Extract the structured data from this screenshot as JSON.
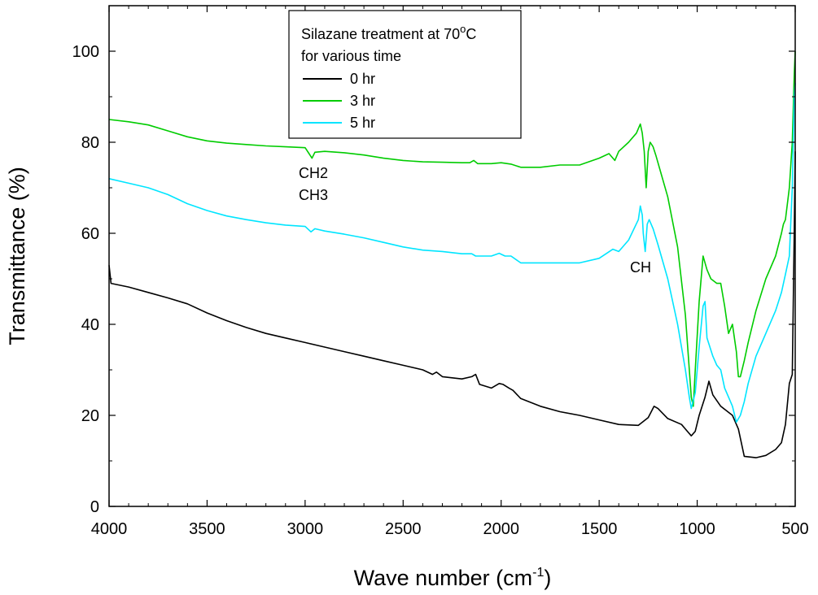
{
  "chart_data": {
    "type": "line",
    "xlabel": "Wave number (cm",
    "xlabel_sup": "-1",
    "xlabel_close": ")",
    "ylabel": "Transmittance (%)",
    "xlim": [
      4000,
      500
    ],
    "ylim": [
      0,
      110
    ],
    "x_ticks": [
      4000,
      3500,
      3000,
      2500,
      2000,
      1500,
      1000,
      500
    ],
    "y_ticks": [
      0,
      20,
      40,
      60,
      80,
      100
    ],
    "grid": false,
    "legend": {
      "placement": "top-center",
      "title_line1": "Silazane treatment at 70",
      "title_deg": "o",
      "title_unit": "C",
      "title_line2": "for various time"
    },
    "annotations": {
      "ch2": "CH2",
      "ch3": "CH3",
      "ch": "CH"
    },
    "series": [
      {
        "name": "0 hr",
        "color": "#000000",
        "points": [
          [
            4000,
            53
          ],
          [
            3990,
            49
          ],
          [
            3900,
            48.2
          ],
          [
            3800,
            47
          ],
          [
            3700,
            45.8
          ],
          [
            3600,
            44.5
          ],
          [
            3500,
            42.5
          ],
          [
            3400,
            40.8
          ],
          [
            3300,
            39.3
          ],
          [
            3200,
            38
          ],
          [
            3100,
            37
          ],
          [
            3000,
            36
          ],
          [
            2900,
            35
          ],
          [
            2800,
            34
          ],
          [
            2700,
            33
          ],
          [
            2600,
            32
          ],
          [
            2500,
            31
          ],
          [
            2400,
            30
          ],
          [
            2350,
            29
          ],
          [
            2330,
            29.5
          ],
          [
            2300,
            28.5
          ],
          [
            2200,
            28
          ],
          [
            2150,
            28.5
          ],
          [
            2130,
            29
          ],
          [
            2110,
            26.8
          ],
          [
            2050,
            26
          ],
          [
            2010,
            27
          ],
          [
            1990,
            26.8
          ],
          [
            1960,
            26
          ],
          [
            1940,
            25.5
          ],
          [
            1900,
            23.7
          ],
          [
            1800,
            22
          ],
          [
            1700,
            20.8
          ],
          [
            1600,
            20
          ],
          [
            1500,
            19
          ],
          [
            1400,
            18
          ],
          [
            1300,
            17.8
          ],
          [
            1250,
            19.5
          ],
          [
            1220,
            22
          ],
          [
            1200,
            21.5
          ],
          [
            1150,
            19.3
          ],
          [
            1080,
            18
          ],
          [
            1050,
            16.5
          ],
          [
            1030,
            15.5
          ],
          [
            1010,
            16.5
          ],
          [
            990,
            20
          ],
          [
            960,
            24
          ],
          [
            940,
            27.5
          ],
          [
            920,
            24.5
          ],
          [
            880,
            22
          ],
          [
            820,
            20
          ],
          [
            790,
            17
          ],
          [
            760,
            11
          ],
          [
            700,
            10.7
          ],
          [
            650,
            11.2
          ],
          [
            600,
            12.5
          ],
          [
            570,
            14
          ],
          [
            550,
            18
          ],
          [
            530,
            27
          ],
          [
            515,
            29
          ],
          [
            505,
            60
          ],
          [
            500,
            78
          ]
        ]
      },
      {
        "name": "3 hr",
        "color": "#00cc00",
        "points": [
          [
            4000,
            85
          ],
          [
            3900,
            84.5
          ],
          [
            3800,
            83.8
          ],
          [
            3700,
            82.5
          ],
          [
            3600,
            81.2
          ],
          [
            3500,
            80.3
          ],
          [
            3400,
            79.8
          ],
          [
            3300,
            79.5
          ],
          [
            3200,
            79.2
          ],
          [
            3100,
            79
          ],
          [
            3000,
            78.8
          ],
          [
            2980,
            77.5
          ],
          [
            2965,
            76.5
          ],
          [
            2950,
            77.8
          ],
          [
            2900,
            78
          ],
          [
            2800,
            77.7
          ],
          [
            2700,
            77.2
          ],
          [
            2600,
            76.5
          ],
          [
            2500,
            76
          ],
          [
            2400,
            75.7
          ],
          [
            2300,
            75.6
          ],
          [
            2200,
            75.5
          ],
          [
            2160,
            75.5
          ],
          [
            2140,
            76
          ],
          [
            2120,
            75.3
          ],
          [
            2050,
            75.3
          ],
          [
            2000,
            75.5
          ],
          [
            1950,
            75.2
          ],
          [
            1900,
            74.5
          ],
          [
            1800,
            74.5
          ],
          [
            1700,
            75
          ],
          [
            1600,
            75
          ],
          [
            1500,
            76.5
          ],
          [
            1450,
            77.5
          ],
          [
            1420,
            76
          ],
          [
            1400,
            78
          ],
          [
            1350,
            80
          ],
          [
            1310,
            82
          ],
          [
            1290,
            84
          ],
          [
            1280,
            82
          ],
          [
            1270,
            78
          ],
          [
            1260,
            70
          ],
          [
            1250,
            78
          ],
          [
            1240,
            80
          ],
          [
            1225,
            79
          ],
          [
            1210,
            77
          ],
          [
            1190,
            74
          ],
          [
            1150,
            68
          ],
          [
            1100,
            57
          ],
          [
            1060,
            42
          ],
          [
            1040,
            30
          ],
          [
            1030,
            24
          ],
          [
            1020,
            22
          ],
          [
            1010,
            30
          ],
          [
            990,
            45
          ],
          [
            970,
            55
          ],
          [
            950,
            52
          ],
          [
            930,
            50
          ],
          [
            900,
            49
          ],
          [
            880,
            49
          ],
          [
            860,
            44
          ],
          [
            840,
            38
          ],
          [
            820,
            40
          ],
          [
            800,
            34
          ],
          [
            790,
            28.5
          ],
          [
            780,
            28.5
          ],
          [
            760,
            32
          ],
          [
            740,
            36
          ],
          [
            700,
            43
          ],
          [
            650,
            50
          ],
          [
            600,
            55
          ],
          [
            570,
            60
          ],
          [
            560,
            62
          ],
          [
            550,
            63
          ],
          [
            530,
            70
          ],
          [
            515,
            80
          ],
          [
            505,
            95
          ],
          [
            500,
            100
          ]
        ]
      },
      {
        "name": "5 hr",
        "color": "#00e5ff",
        "points": [
          [
            4000,
            72
          ],
          [
            3900,
            71
          ],
          [
            3800,
            70
          ],
          [
            3700,
            68.5
          ],
          [
            3600,
            66.5
          ],
          [
            3500,
            65
          ],
          [
            3400,
            63.8
          ],
          [
            3300,
            63
          ],
          [
            3200,
            62.3
          ],
          [
            3100,
            61.8
          ],
          [
            3000,
            61.5
          ],
          [
            2970,
            60.3
          ],
          [
            2950,
            61
          ],
          [
            2900,
            60.5
          ],
          [
            2800,
            59.8
          ],
          [
            2700,
            59
          ],
          [
            2600,
            58
          ],
          [
            2500,
            57
          ],
          [
            2400,
            56.3
          ],
          [
            2300,
            56
          ],
          [
            2200,
            55.5
          ],
          [
            2150,
            55.5
          ],
          [
            2130,
            55
          ],
          [
            2050,
            55
          ],
          [
            2010,
            55.6
          ],
          [
            1980,
            55
          ],
          [
            1950,
            55
          ],
          [
            1900,
            53.5
          ],
          [
            1800,
            53.5
          ],
          [
            1700,
            53.5
          ],
          [
            1600,
            53.5
          ],
          [
            1500,
            54.5
          ],
          [
            1430,
            56.5
          ],
          [
            1400,
            56
          ],
          [
            1350,
            58.5
          ],
          [
            1300,
            63
          ],
          [
            1290,
            66
          ],
          [
            1280,
            64
          ],
          [
            1275,
            60
          ],
          [
            1265,
            56
          ],
          [
            1255,
            62
          ],
          [
            1245,
            63
          ],
          [
            1225,
            61
          ],
          [
            1200,
            57.5
          ],
          [
            1150,
            50
          ],
          [
            1100,
            40
          ],
          [
            1060,
            30
          ],
          [
            1040,
            24
          ],
          [
            1030,
            21.5
          ],
          [
            1010,
            25
          ],
          [
            990,
            35
          ],
          [
            970,
            44
          ],
          [
            960,
            45
          ],
          [
            950,
            37
          ],
          [
            920,
            33
          ],
          [
            900,
            31
          ],
          [
            880,
            30
          ],
          [
            860,
            26
          ],
          [
            840,
            24
          ],
          [
            820,
            22
          ],
          [
            800,
            18.5
          ],
          [
            780,
            20
          ],
          [
            760,
            23
          ],
          [
            740,
            27
          ],
          [
            700,
            33
          ],
          [
            650,
            38
          ],
          [
            600,
            43
          ],
          [
            570,
            47
          ],
          [
            550,
            51
          ],
          [
            530,
            55
          ],
          [
            515,
            70
          ],
          [
            505,
            90
          ],
          [
            500,
            93
          ]
        ]
      }
    ]
  }
}
